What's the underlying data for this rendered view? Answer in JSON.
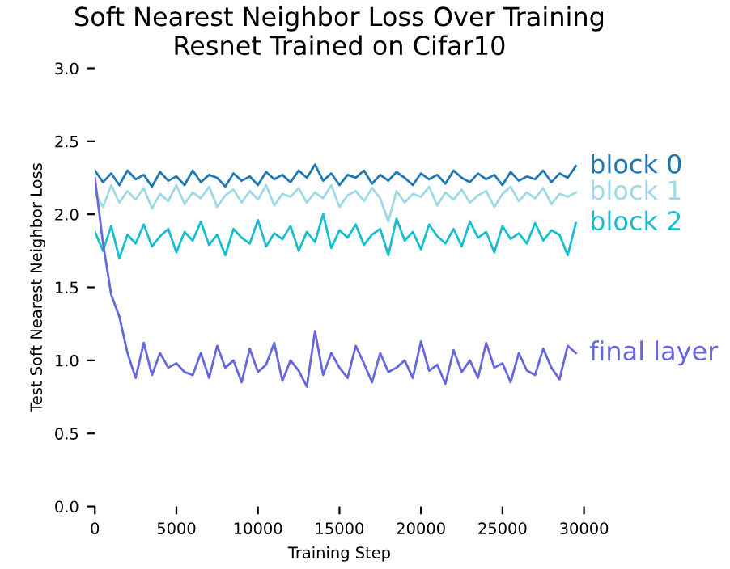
{
  "chart_data": {
    "type": "line",
    "title": "Soft Nearest Neighbor Loss Over Training\nResnet Trained on Cifar10",
    "xlabel": "Training Step",
    "ylabel": "Test Soft Nearest Neighbor Loss",
    "xlim": [
      0,
      30000
    ],
    "ylim": [
      0,
      3.0
    ],
    "xticks": [
      0,
      5000,
      10000,
      15000,
      20000,
      25000,
      30000
    ],
    "yticks": [
      {
        "value": 0,
        "label": "0.0"
      },
      0.5,
      {
        "value": 1,
        "label": "1.0"
      },
      1.5,
      {
        "value": 2,
        "label": "2.0"
      },
      2.5,
      {
        "value": 3,
        "label": "3.0"
      }
    ],
    "grid": false,
    "legend": false,
    "marker": "none",
    "line_style": "solid",
    "x": [
      0,
      500,
      1000,
      1500,
      2000,
      2500,
      3000,
      3500,
      4000,
      4500,
      5000,
      5500,
      6000,
      6500,
      7000,
      7500,
      8000,
      8500,
      9000,
      9500,
      10000,
      10500,
      11000,
      11500,
      12000,
      12500,
      13000,
      13500,
      14000,
      14500,
      15000,
      15500,
      16000,
      16500,
      17000,
      17500,
      18000,
      18500,
      19000,
      19500,
      20000,
      20500,
      21000,
      21500,
      22000,
      22500,
      23000,
      23500,
      24000,
      24500,
      25000,
      25500,
      26000,
      26500,
      27000,
      27500,
      28000,
      28500,
      29000,
      29500
    ],
    "series": [
      {
        "name": "block 0",
        "color": "#1f77b4",
        "values": [
          2.3,
          2.22,
          2.28,
          2.2,
          2.3,
          2.24,
          2.27,
          2.19,
          2.29,
          2.23,
          2.26,
          2.2,
          2.3,
          2.22,
          2.27,
          2.25,
          2.19,
          2.28,
          2.23,
          2.26,
          2.2,
          2.29,
          2.24,
          2.27,
          2.22,
          2.3,
          2.25,
          2.34,
          2.23,
          2.28,
          2.2,
          2.27,
          2.25,
          2.3,
          2.21,
          2.27,
          2.23,
          2.29,
          2.25,
          2.2,
          2.28,
          2.24,
          2.27,
          2.21,
          2.3,
          2.25,
          2.22,
          2.28,
          2.24,
          2.27,
          2.2,
          2.29,
          2.23,
          2.26,
          2.24,
          2.3,
          2.22,
          2.28,
          2.25,
          2.33
        ]
      },
      {
        "name": "block 1",
        "color": "#9edae5",
        "values": [
          2.15,
          2.05,
          2.2,
          2.08,
          2.16,
          2.1,
          2.18,
          2.04,
          2.14,
          2.09,
          2.2,
          2.07,
          2.15,
          2.11,
          2.19,
          2.05,
          2.13,
          2.17,
          2.08,
          2.16,
          2.1,
          2.2,
          2.06,
          2.14,
          2.12,
          2.18,
          2.08,
          2.15,
          2.11,
          2.2,
          2.05,
          2.13,
          2.16,
          2.09,
          2.18,
          2.11,
          1.95,
          2.16,
          2.08,
          2.14,
          2.12,
          2.19,
          2.06,
          2.15,
          2.1,
          2.17,
          2.08,
          2.13,
          2.16,
          2.05,
          2.14,
          2.19,
          2.09,
          2.15,
          2.11,
          2.18,
          2.07,
          2.14,
          2.12,
          2.15
        ]
      },
      {
        "name": "block 2",
        "color": "#17becf",
        "values": [
          1.88,
          1.75,
          1.92,
          1.7,
          1.86,
          1.8,
          1.93,
          1.78,
          1.85,
          1.9,
          1.74,
          1.88,
          1.82,
          1.95,
          1.79,
          1.86,
          1.72,
          1.9,
          1.84,
          1.8,
          1.96,
          1.78,
          1.87,
          1.83,
          1.92,
          1.75,
          1.88,
          1.81,
          2.0,
          1.77,
          1.89,
          1.84,
          1.93,
          1.79,
          1.86,
          1.9,
          1.72,
          1.97,
          1.82,
          1.88,
          1.76,
          1.93,
          1.85,
          1.8,
          1.9,
          1.78,
          1.95,
          1.84,
          1.88,
          1.74,
          1.92,
          1.83,
          1.87,
          1.8,
          1.94,
          1.82,
          1.89,
          1.86,
          1.72,
          1.94
        ]
      },
      {
        "name": "final layer",
        "color": "#6666dd",
        "values": [
          2.25,
          1.8,
          1.45,
          1.3,
          1.05,
          0.88,
          1.12,
          0.9,
          1.05,
          0.95,
          0.98,
          0.92,
          0.9,
          1.05,
          0.88,
          1.1,
          0.95,
          1.0,
          0.85,
          1.08,
          0.92,
          0.97,
          1.12,
          0.86,
          1.0,
          0.93,
          0.82,
          1.2,
          0.9,
          1.05,
          0.95,
          0.88,
          1.1,
          0.98,
          0.85,
          1.05,
          0.92,
          0.95,
          1.0,
          0.88,
          1.13,
          0.93,
          0.97,
          0.84,
          1.07,
          0.92,
          1.0,
          0.88,
          1.12,
          0.95,
          0.98,
          0.85,
          1.05,
          0.93,
          0.9,
          1.08,
          0.95,
          0.87,
          1.1,
          1.05
        ]
      }
    ]
  }
}
